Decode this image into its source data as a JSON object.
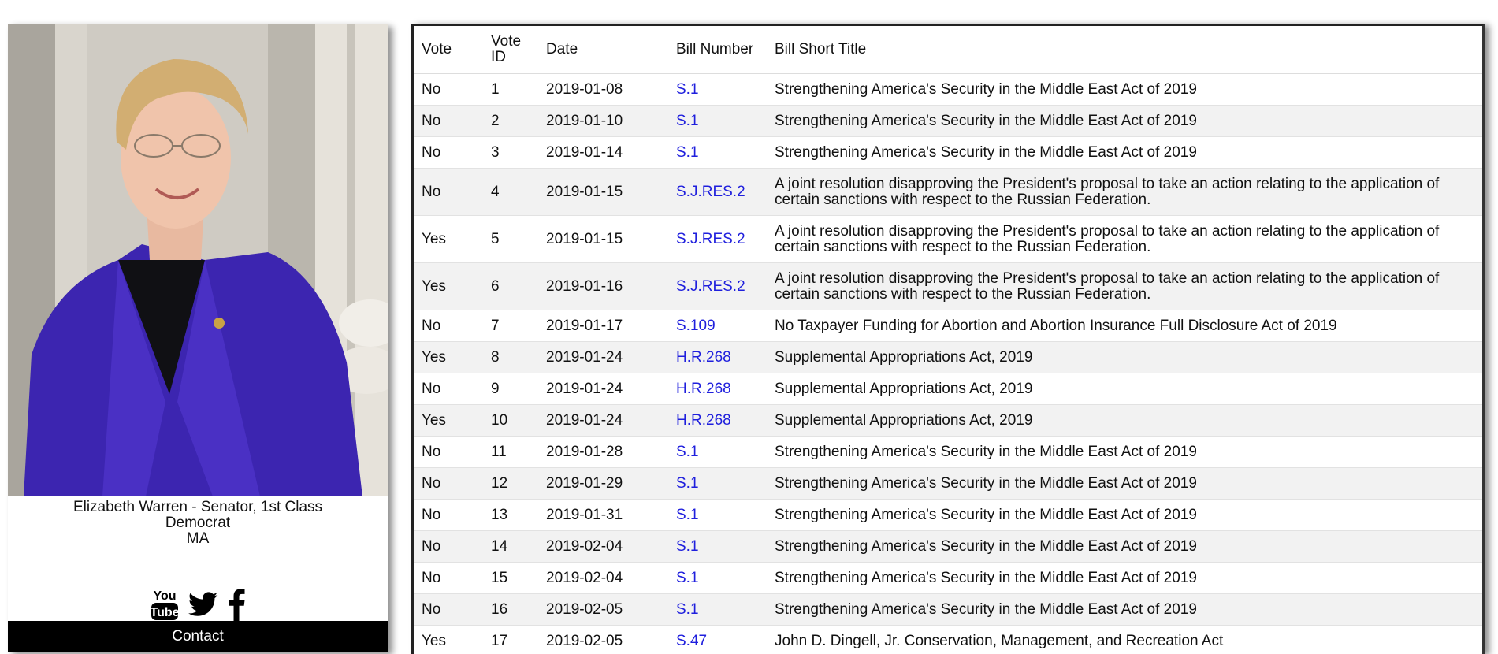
{
  "profile": {
    "name_line": "Elizabeth Warren - Senator, 1st Class",
    "party": "Democrat",
    "state": "MA",
    "social": [
      {
        "name": "youtube-icon",
        "label": "You Tube"
      },
      {
        "name": "twitter-icon"
      },
      {
        "name": "facebook-icon"
      }
    ],
    "contact_label": "Contact",
    "photo_icon": "portrait-photo"
  },
  "table": {
    "headers": {
      "vote": "Vote",
      "vote_id": "Vote ID",
      "date": "Date",
      "bill_number": "Bill Number",
      "bill_title": "Bill Short Title"
    },
    "link_color": "#1f1fdd",
    "rows": [
      {
        "vote": "No",
        "id": "1",
        "date": "2019-01-08",
        "bill": "S.1",
        "title": "Strengthening America's Security in the Middle East Act of 2019"
      },
      {
        "vote": "No",
        "id": "2",
        "date": "2019-01-10",
        "bill": "S.1",
        "title": "Strengthening America's Security in the Middle East Act of 2019"
      },
      {
        "vote": "No",
        "id": "3",
        "date": "2019-01-14",
        "bill": "S.1",
        "title": "Strengthening America's Security in the Middle East Act of 2019"
      },
      {
        "vote": "No",
        "id": "4",
        "date": "2019-01-15",
        "bill": "S.J.RES.2",
        "title": "A joint resolution disapproving the President's proposal to take an action relating to the application of certain sanctions with respect to the Russian Federation."
      },
      {
        "vote": "Yes",
        "id": "5",
        "date": "2019-01-15",
        "bill": "S.J.RES.2",
        "title": "A joint resolution disapproving the President's proposal to take an action relating to the application of certain sanctions with respect to the Russian Federation."
      },
      {
        "vote": "Yes",
        "id": "6",
        "date": "2019-01-16",
        "bill": "S.J.RES.2",
        "title": "A joint resolution disapproving the President's proposal to take an action relating to the application of certain sanctions with respect to the Russian Federation."
      },
      {
        "vote": "No",
        "id": "7",
        "date": "2019-01-17",
        "bill": "S.109",
        "title": "No Taxpayer Funding for Abortion and Abortion Insurance Full Disclosure Act of 2019"
      },
      {
        "vote": "Yes",
        "id": "8",
        "date": "2019-01-24",
        "bill": "H.R.268",
        "title": "Supplemental Appropriations Act, 2019"
      },
      {
        "vote": "No",
        "id": "9",
        "date": "2019-01-24",
        "bill": "H.R.268",
        "title": "Supplemental Appropriations Act, 2019"
      },
      {
        "vote": "Yes",
        "id": "10",
        "date": "2019-01-24",
        "bill": "H.R.268",
        "title": "Supplemental Appropriations Act, 2019"
      },
      {
        "vote": "No",
        "id": "11",
        "date": "2019-01-28",
        "bill": "S.1",
        "title": "Strengthening America's Security in the Middle East Act of 2019"
      },
      {
        "vote": "No",
        "id": "12",
        "date": "2019-01-29",
        "bill": "S.1",
        "title": "Strengthening America's Security in the Middle East Act of 2019"
      },
      {
        "vote": "No",
        "id": "13",
        "date": "2019-01-31",
        "bill": "S.1",
        "title": "Strengthening America's Security in the Middle East Act of 2019"
      },
      {
        "vote": "No",
        "id": "14",
        "date": "2019-02-04",
        "bill": "S.1",
        "title": "Strengthening America's Security in the Middle East Act of 2019"
      },
      {
        "vote": "No",
        "id": "15",
        "date": "2019-02-04",
        "bill": "S.1",
        "title": "Strengthening America's Security in the Middle East Act of 2019"
      },
      {
        "vote": "No",
        "id": "16",
        "date": "2019-02-05",
        "bill": "S.1",
        "title": "Strengthening America's Security in the Middle East Act of 2019"
      },
      {
        "vote": "Yes",
        "id": "17",
        "date": "2019-02-05",
        "bill": "S.47",
        "title": "John D. Dingell, Jr. Conservation, Management, and Recreation Act"
      }
    ]
  }
}
